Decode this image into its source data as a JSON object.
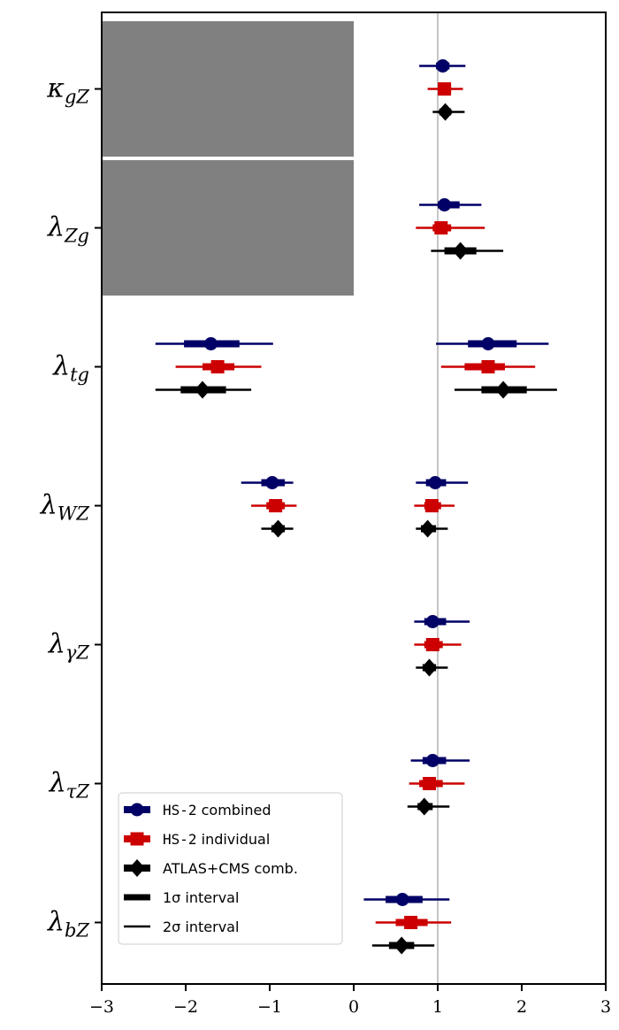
{
  "chart_data": {
    "type": "scatter",
    "title": "",
    "xlabel": "",
    "ylabel": "",
    "xlim": [
      -3,
      3
    ],
    "x_ticks": [
      {
        "value": -3,
        "label": "−3"
      },
      {
        "value": -2,
        "label": "−2"
      },
      {
        "value": -1,
        "label": "−1"
      },
      {
        "value": 0,
        "label": "0"
      },
      {
        "value": 1,
        "label": "1"
      },
      {
        "value": 2,
        "label": "2"
      },
      {
        "value": 3,
        "label": "3"
      }
    ],
    "reference_line_x": 1,
    "grid": false,
    "legend_position": "bottom-left",
    "parameters": [
      {
        "base": "κ",
        "sub": "gZ"
      },
      {
        "base": "λ",
        "sub": "Zg"
      },
      {
        "base": "λ",
        "sub": "tg"
      },
      {
        "base": "λ",
        "sub": "WZ"
      },
      {
        "base": "λ",
        "sub": "γZ"
      },
      {
        "base": "λ",
        "sub": "τZ"
      },
      {
        "base": "λ",
        "sub": "bZ"
      }
    ],
    "excluded_regions": [
      {
        "parameter_index": 0,
        "x_range": [
          -3,
          0
        ]
      },
      {
        "parameter_index": 1,
        "x_range": [
          -3,
          0
        ]
      }
    ],
    "series": [
      {
        "name": "HS-2 combined",
        "marker": "circle",
        "color": "#000066",
        "points": [
          {
            "param": 0,
            "center": 1.06,
            "one_sigma": [
              0.98,
              1.14
            ],
            "two_sigma": [
              0.78,
              1.33
            ]
          },
          {
            "param": 1,
            "center": 1.08,
            "one_sigma": [
              1.0,
              1.26
            ],
            "two_sigma": [
              0.78,
              1.52
            ]
          },
          {
            "param": 2,
            "center": -1.7,
            "one_sigma": [
              -2.02,
              -1.36
            ],
            "two_sigma": [
              -2.36,
              -0.96
            ]
          },
          {
            "param": 2,
            "center": 1.6,
            "one_sigma": [
              1.36,
              1.94
            ],
            "two_sigma": [
              0.98,
              2.32
            ]
          },
          {
            "param": 3,
            "center": -0.97,
            "one_sigma": [
              -1.1,
              -0.82
            ],
            "two_sigma": [
              -1.34,
              -0.72
            ]
          },
          {
            "param": 3,
            "center": 0.97,
            "one_sigma": [
              0.86,
              1.1
            ],
            "two_sigma": [
              0.74,
              1.36
            ]
          },
          {
            "param": 4,
            "center": 0.94,
            "one_sigma": [
              0.84,
              1.1
            ],
            "two_sigma": [
              0.72,
              1.38
            ]
          },
          {
            "param": 5,
            "center": 0.94,
            "one_sigma": [
              0.82,
              1.1
            ],
            "two_sigma": [
              0.68,
              1.38
            ]
          },
          {
            "param": 6,
            "center": 0.58,
            "one_sigma": [
              0.38,
              0.82
            ],
            "two_sigma": [
              0.12,
              1.14
            ]
          }
        ]
      },
      {
        "name": "HS-2 individual",
        "marker": "square",
        "color": "#cc0000",
        "points": [
          {
            "param": 0,
            "center": 1.08,
            "one_sigma": [
              1.0,
              1.16
            ],
            "two_sigma": [
              0.88,
              1.3
            ]
          },
          {
            "param": 1,
            "center": 1.04,
            "one_sigma": [
              0.94,
              1.16
            ],
            "two_sigma": [
              0.74,
              1.56
            ]
          },
          {
            "param": 2,
            "center": -1.62,
            "one_sigma": [
              -1.8,
              -1.42
            ],
            "two_sigma": [
              -2.12,
              -1.1
            ]
          },
          {
            "param": 2,
            "center": 1.6,
            "one_sigma": [
              1.32,
              1.8
            ],
            "two_sigma": [
              1.04,
              2.16
            ]
          },
          {
            "param": 3,
            "center": -0.93,
            "one_sigma": [
              -1.04,
              -0.82
            ],
            "two_sigma": [
              -1.22,
              -0.68
            ]
          },
          {
            "param": 3,
            "center": 0.93,
            "one_sigma": [
              0.84,
              1.04
            ],
            "two_sigma": [
              0.72,
              1.2
            ]
          },
          {
            "param": 4,
            "center": 0.94,
            "one_sigma": [
              0.84,
              1.06
            ],
            "two_sigma": [
              0.72,
              1.28
            ]
          },
          {
            "param": 5,
            "center": 0.9,
            "one_sigma": [
              0.78,
              1.06
            ],
            "two_sigma": [
              0.66,
              1.32
            ]
          },
          {
            "param": 6,
            "center": 0.68,
            "one_sigma": [
              0.5,
              0.88
            ],
            "two_sigma": [
              0.26,
              1.16
            ]
          }
        ]
      },
      {
        "name": "ATLAS+CMS comb.",
        "marker": "diamond",
        "color": "#000000",
        "points": [
          {
            "param": 0,
            "center": 1.09,
            "one_sigma": [
              1.02,
              1.16
            ],
            "two_sigma": [
              0.94,
              1.32
            ]
          },
          {
            "param": 1,
            "center": 1.27,
            "one_sigma": [
              1.08,
              1.46
            ],
            "two_sigma": [
              0.92,
              1.78
            ]
          },
          {
            "param": 2,
            "center": -1.8,
            "one_sigma": [
              -2.06,
              -1.52
            ],
            "two_sigma": [
              -2.36,
              -1.22
            ]
          },
          {
            "param": 2,
            "center": 1.78,
            "one_sigma": [
              1.52,
              2.06
            ],
            "two_sigma": [
              1.2,
              2.42
            ]
          },
          {
            "param": 3,
            "center": -0.9,
            "one_sigma": [
              -0.98,
              -0.82
            ],
            "two_sigma": [
              -1.1,
              -0.72
            ]
          },
          {
            "param": 3,
            "center": 0.88,
            "one_sigma": [
              0.8,
              0.98
            ],
            "two_sigma": [
              0.74,
              1.12
            ]
          },
          {
            "param": 4,
            "center": 0.9,
            "one_sigma": [
              0.82,
              0.98
            ],
            "two_sigma": [
              0.74,
              1.12
            ]
          },
          {
            "param": 5,
            "center": 0.84,
            "one_sigma": [
              0.76,
              0.94
            ],
            "two_sigma": [
              0.64,
              1.14
            ]
          },
          {
            "param": 6,
            "center": 0.57,
            "one_sigma": [
              0.42,
              0.72
            ],
            "two_sigma": [
              0.22,
              0.96
            ]
          }
        ]
      }
    ],
    "legend": {
      "entries": [
        {
          "label": "HS-2 combined",
          "series": 0
        },
        {
          "label": "HS-2 individual",
          "series": 1
        },
        {
          "label": "ATLAS+CMS comb.",
          "series": 2
        },
        {
          "label": "1σ interval",
          "style": "thick"
        },
        {
          "label": "2σ interval",
          "style": "thin"
        }
      ]
    }
  }
}
